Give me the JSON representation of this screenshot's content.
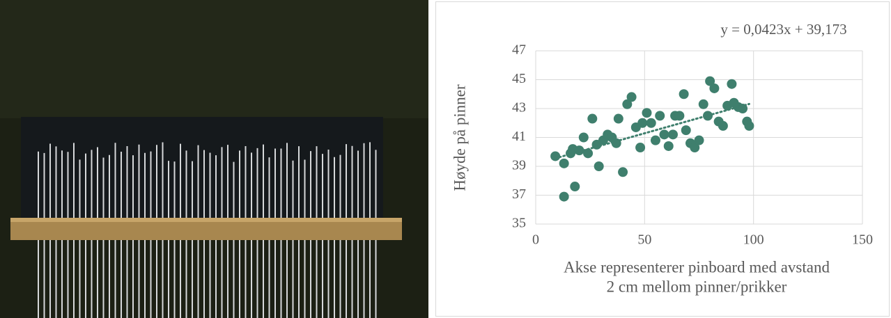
{
  "chart_data": {
    "type": "scatter",
    "trendline_label": "y = 0,0423x + 39,173",
    "trendline": {
      "slope": 0.0423,
      "intercept": 39.173
    },
    "ylabel": "Høyde på pinner",
    "xlabel": [
      "Akse representerer pinboard med avstand",
      "2 cm mellom pinner/prikker"
    ],
    "x": [
      9,
      13,
      13,
      16,
      17,
      18,
      20,
      22,
      24,
      26,
      28,
      29,
      31,
      33,
      35,
      37,
      38,
      40,
      42,
      44,
      46,
      48,
      49,
      51,
      53,
      55,
      57,
      59,
      61,
      63,
      64,
      66,
      68,
      69,
      71,
      73,
      75,
      77,
      79,
      80,
      82,
      84,
      86,
      88,
      90,
      91,
      93,
      95,
      97,
      98
    ],
    "values": [
      39.7,
      36.9,
      39.2,
      39.9,
      40.2,
      37.6,
      40.1,
      41.0,
      39.9,
      42.3,
      40.5,
      39.0,
      40.8,
      41.2,
      41.0,
      40.6,
      42.3,
      38.6,
      43.3,
      43.8,
      41.7,
      40.3,
      42.0,
      42.7,
      42.0,
      40.8,
      42.5,
      41.2,
      40.4,
      41.2,
      42.5,
      42.5,
      44.0,
      41.5,
      40.6,
      40.3,
      40.8,
      43.3,
      42.5,
      44.9,
      44.4,
      42.1,
      41.8,
      43.2,
      44.7,
      43.4,
      43.1,
      43.0,
      42.1,
      41.8
    ],
    "color": "#3f7f6d",
    "trend_color": "#3f7f6d",
    "xlim": [
      0,
      150
    ],
    "xticks": [
      0,
      50,
      100,
      150
    ],
    "ylim": [
      35,
      47
    ],
    "yticks": [
      35,
      37,
      39,
      41,
      43,
      45,
      47
    ],
    "grid": true
  }
}
